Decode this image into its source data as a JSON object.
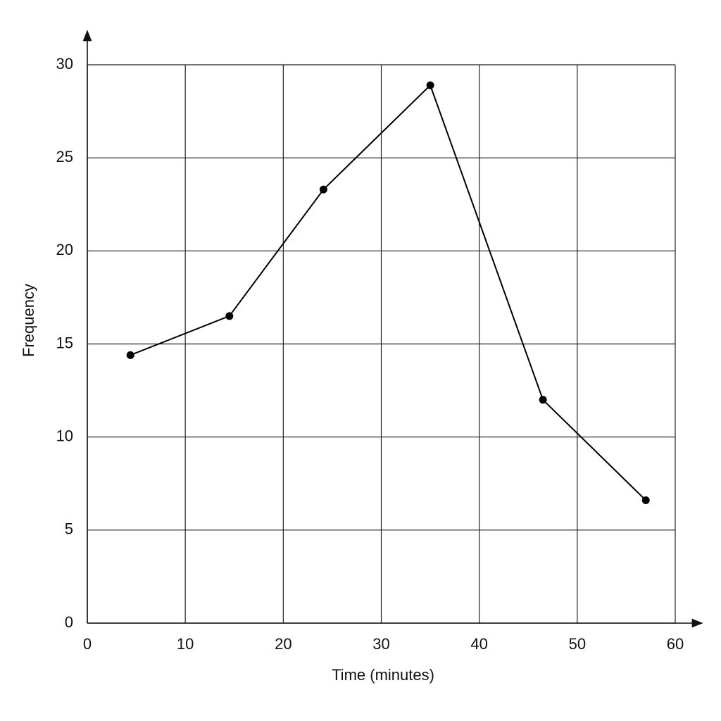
{
  "chart_data": {
    "type": "line",
    "x_label": "Time (minutes)",
    "y_label": "Frequency",
    "series": [
      {
        "color": "#000000",
        "x": [
          4.4,
          14.5,
          24.1,
          35,
          46.5,
          57
        ],
        "values": [
          14.4,
          16.5,
          23.3,
          28.9,
          12,
          6.6
        ]
      }
    ],
    "xlim": [
      0,
      60
    ],
    "xticks": [
      0,
      10,
      20,
      30,
      40,
      50,
      60
    ],
    "ylim": [
      0,
      30
    ],
    "yticks": [
      0,
      5,
      10,
      15,
      20,
      25,
      30
    ],
    "grid": true
  }
}
